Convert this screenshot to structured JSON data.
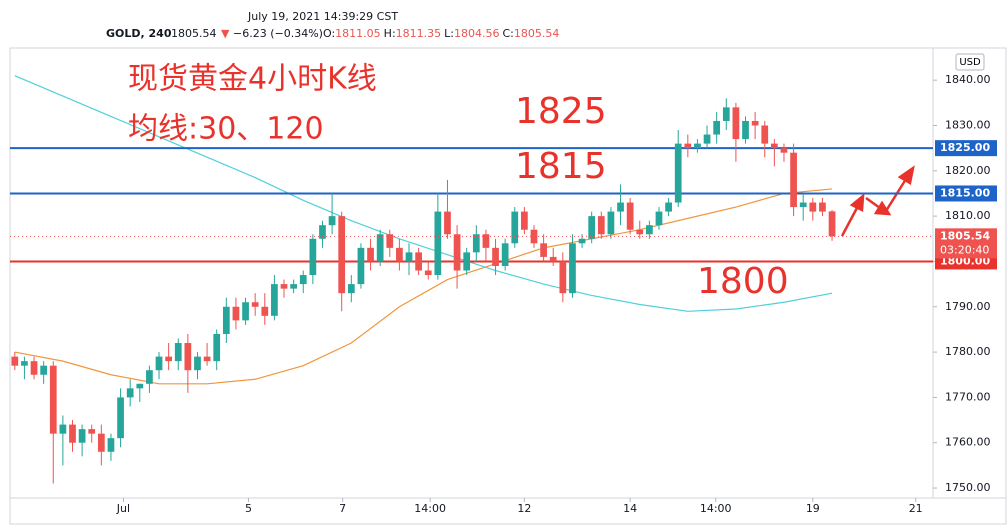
{
  "header": {
    "datetime": "July 19, 2021 14:39:29 CST",
    "symbol": "GOLD, 240",
    "price": "1805.54",
    "change": "−6.23 (−0.34%)",
    "ohlc": [
      {
        "label": "O:",
        "value": "1811.05"
      },
      {
        "label": "H:",
        "value": "1811.35"
      },
      {
        "label": "L:",
        "value": "1804.56"
      },
      {
        "label": "C:",
        "value": "1805.54"
      }
    ]
  },
  "chart_data": {
    "type": "candlestick",
    "currency": "USD",
    "up_color": "#26a69a",
    "down_color": "#ef5350",
    "xlim": [
      -0.5,
      95.5
    ],
    "ylim": [
      1747.8,
      1847.1
    ],
    "xticks": [
      {
        "value": 11.3,
        "label": "Jul"
      },
      {
        "value": 24.3,
        "label": "5"
      },
      {
        "value": 34.1,
        "label": "7"
      },
      {
        "value": 43.2,
        "label": "14:00"
      },
      {
        "value": 53,
        "label": "12"
      },
      {
        "value": 64,
        "label": "14"
      },
      {
        "value": 72.9,
        "label": "14:00"
      },
      {
        "value": 83,
        "label": "19"
      },
      {
        "value": 93.7,
        "label": "21"
      }
    ],
    "yticks": [
      {
        "value": 1750,
        "label": "1750.00"
      },
      {
        "value": 1760,
        "label": "1760.00"
      },
      {
        "value": 1770,
        "label": "1770.00"
      },
      {
        "value": 1780,
        "label": "1780.00"
      },
      {
        "value": 1790,
        "label": "1790.00"
      },
      {
        "value": 1800,
        "label": "1800.00"
      },
      {
        "value": 1810,
        "label": "1810.00"
      },
      {
        "value": 1820,
        "label": "1820.00"
      },
      {
        "value": 1830,
        "label": "1830.00"
      },
      {
        "value": 1840,
        "label": "1840.00"
      }
    ],
    "open": [
      1779,
      1777,
      1778,
      1775,
      1777,
      1762,
      1764,
      1760,
      1763,
      1762,
      1758,
      1761,
      1770,
      1772,
      1773,
      1776,
      1779,
      1778,
      1782,
      1776,
      1779,
      1778,
      1784,
      1790,
      1787,
      1791,
      1790,
      1788,
      1795,
      1794,
      1795,
      1797,
      1805,
      1808,
      1810,
      1793,
      1795,
      1803,
      1800,
      1806,
      1803,
      1800,
      1802,
      1798,
      1797,
      1811,
      1806,
      1798,
      1802,
      1806,
      1803,
      1799,
      1804,
      1811,
      1807,
      1804,
      1801,
      1800,
      1793,
      1804,
      1805,
      1810,
      1806,
      1811,
      1813,
      1807,
      1806,
      1808,
      1811,
      1813,
      1826,
      1825,
      1826,
      1828,
      1831,
      1834,
      1827,
      1831,
      1830,
      1826,
      1825,
      1824,
      1812,
      1813,
      1813,
      1811.05
    ],
    "high": [
      1780,
      1779,
      1779,
      1778,
      1778,
      1766,
      1765,
      1764,
      1764,
      1764,
      1762,
      1772,
      1774,
      1773,
      1777,
      1780,
      1782,
      1783,
      1784,
      1780,
      1782,
      1785,
      1792,
      1792,
      1792,
      1793,
      1793,
      1797,
      1796,
      1796,
      1798,
      1806,
      1809,
      1815,
      1811,
      1797,
      1804,
      1805,
      1807,
      1807,
      1805,
      1804,
      1803,
      1800,
      1815,
      1818,
      1808,
      1803,
      1808,
      1807,
      1805,
      1805,
      1812,
      1812,
      1808,
      1806,
      1803,
      1802,
      1806,
      1806,
      1811,
      1811,
      1812,
      1817,
      1814,
      1809,
      1809,
      1812,
      1814,
      1829,
      1828,
      1827,
      1830,
      1833,
      1836,
      1835,
      1832,
      1833,
      1831,
      1827,
      1826,
      1826,
      1815,
      1814,
      1814,
      1811.35
    ],
    "low": [
      1776,
      1774,
      1774,
      1773,
      1751,
      1755,
      1758,
      1757,
      1760,
      1755,
      1756,
      1759,
      1768,
      1769,
      1771,
      1774,
      1776,
      1776,
      1771,
      1774,
      1777,
      1776,
      1782,
      1785,
      1786,
      1788,
      1786,
      1787,
      1792,
      1793,
      1793,
      1795,
      1803,
      1806,
      1789,
      1791,
      1794,
      1798,
      1799,
      1801,
      1798,
      1797,
      1797,
      1796,
      1796,
      1805,
      1794,
      1797,
      1800,
      1800,
      1797,
      1798,
      1803,
      1806,
      1803,
      1800,
      1799,
      1791,
      1792,
      1803,
      1804,
      1805,
      1805,
      1808,
      1806,
      1805,
      1805,
      1807,
      1810,
      1812,
      1823,
      1824,
      1825,
      1826,
      1829,
      1822,
      1826,
      1827,
      1823,
      1821,
      1822,
      1810,
      1809,
      1809,
      1810,
      1804.56
    ],
    "close": [
      1777,
      1778,
      1775,
      1777,
      1762,
      1764,
      1760,
      1763,
      1762,
      1758,
      1761,
      1770,
      1772,
      1773,
      1776,
      1779,
      1778,
      1782,
      1776,
      1779,
      1778,
      1784,
      1790,
      1787,
      1791,
      1790,
      1788,
      1795,
      1794,
      1795,
      1797,
      1805,
      1808,
      1810,
      1793,
      1795,
      1803,
      1800,
      1806,
      1803,
      1800,
      1802,
      1798,
      1797,
      1811,
      1806,
      1798,
      1802,
      1806,
      1803,
      1799,
      1804,
      1811,
      1807,
      1804,
      1801,
      1800,
      1793,
      1804,
      1805,
      1810,
      1806,
      1811,
      1813,
      1807,
      1806,
      1808,
      1811,
      1813,
      1826,
      1825,
      1826,
      1828,
      1831,
      1834,
      1827,
      1831,
      1830,
      1826,
      1825,
      1824,
      1812,
      1813,
      1811,
      1811,
      1805.54
    ],
    "series": [
      {
        "color": "#f0963c",
        "x": [
          0,
          5,
          10,
          15,
          20,
          25,
          30,
          35,
          40,
          45,
          50,
          55,
          60,
          65,
          70,
          75,
          80,
          85
        ],
        "values": [
          1780,
          1778,
          1775,
          1773,
          1773,
          1774,
          1777,
          1782,
          1790,
          1796,
          1799.5,
          1803,
          1805,
          1807,
          1809.5,
          1812,
          1815,
          1816
        ]
      },
      {
        "color": "#4fd0d8",
        "x": [
          0,
          5,
          10,
          15,
          20,
          25,
          30,
          35,
          40,
          45,
          50,
          55,
          60,
          65,
          70,
          75,
          80,
          85
        ],
        "values": [
          1841,
          1836.5,
          1832,
          1827.5,
          1823,
          1818.5,
          1813.5,
          1809,
          1805,
          1801.5,
          1798,
          1795,
          1792.5,
          1790.5,
          1789,
          1789.5,
          1791,
          1793
        ]
      }
    ],
    "levels": [
      {
        "value": 1825,
        "label": "1825.00",
        "color": "#1e63c8"
      },
      {
        "value": 1815,
        "label": "1815.00",
        "color": "#1e63c8"
      },
      {
        "value": 1800,
        "label": "1800.00",
        "color": "#e8322b"
      }
    ],
    "last_price": {
      "value": 1805.54,
      "label": "1805.54",
      "countdown": "03:20:40",
      "color": "#ef5350"
    },
    "annotations": [
      "现货黄金4小时K线",
      "均线:30、120",
      "1825",
      "1815",
      "1800"
    ]
  }
}
